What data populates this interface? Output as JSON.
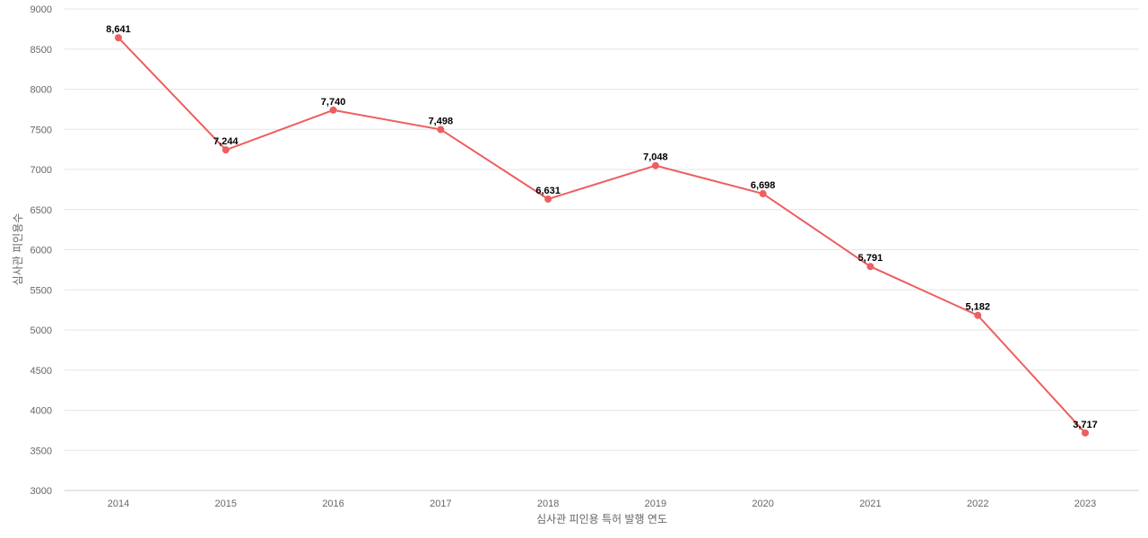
{
  "chart_data": {
    "type": "line",
    "title": "",
    "xlabel": "심사관 피인용 특허 발행 연도",
    "ylabel": "심사관 피인용수",
    "categories": [
      "2014",
      "2015",
      "2016",
      "2017",
      "2018",
      "2019",
      "2020",
      "2021",
      "2022",
      "2023"
    ],
    "series": [
      {
        "values": [
          8641,
          7244,
          7740,
          7498,
          6631,
          7048,
          6698,
          5791,
          5182,
          3717
        ],
        "labels": [
          "8,641",
          "7,244",
          "7,740",
          "7,498",
          "6,631",
          "7,048",
          "6,698",
          "5,791",
          "5,182",
          "3,717"
        ],
        "color": "#ee5e5e"
      }
    ],
    "ylim": [
      3000,
      9000
    ],
    "yticks": [
      "3000",
      "3500",
      "4000",
      "4500",
      "5000",
      "5500",
      "6000",
      "6500",
      "7000",
      "7500",
      "8000",
      "8500",
      "9000"
    ],
    "grid": true,
    "legend": "none"
  }
}
